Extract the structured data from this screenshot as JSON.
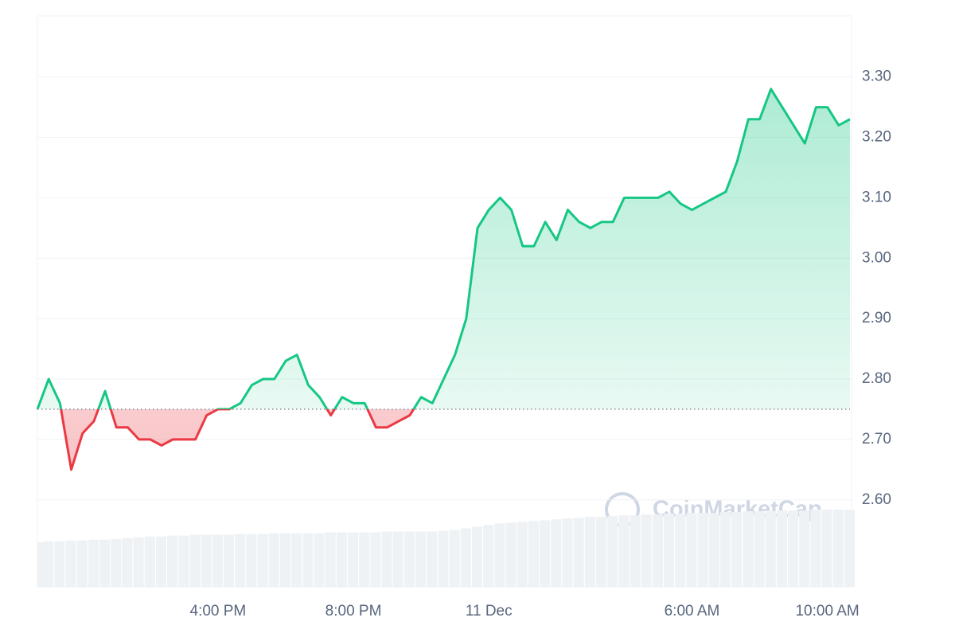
{
  "chart_data": {
    "type": "line",
    "categories": [
      null,
      null,
      null,
      null,
      null,
      null,
      null,
      null,
      null,
      null,
      null,
      null,
      null,
      null,
      null,
      null,
      "4:00 PM",
      null,
      null,
      null,
      null,
      null,
      null,
      null,
      null,
      null,
      null,
      null,
      "8:00 PM",
      null,
      null,
      null,
      null,
      null,
      null,
      null,
      null,
      null,
      null,
      null,
      "11 Dec",
      null,
      null,
      null,
      null,
      null,
      null,
      null,
      null,
      null,
      null,
      null,
      null,
      null,
      null,
      null,
      null,
      null,
      "6:00 AM",
      null,
      null,
      null,
      null,
      null,
      null,
      null,
      null,
      null,
      null,
      null,
      "10:00 AM",
      null,
      null
    ],
    "values": [
      2.75,
      2.8,
      2.76,
      2.65,
      2.71,
      2.73,
      2.78,
      2.72,
      2.72,
      2.7,
      2.7,
      2.69,
      2.7,
      2.7,
      2.7,
      2.74,
      2.75,
      2.75,
      2.76,
      2.79,
      2.8,
      2.8,
      2.83,
      2.84,
      2.79,
      2.77,
      2.74,
      2.77,
      2.76,
      2.76,
      2.72,
      2.72,
      2.73,
      2.74,
      2.77,
      2.76,
      2.8,
      2.84,
      2.9,
      3.05,
      3.08,
      3.1,
      3.08,
      3.02,
      3.02,
      3.06,
      3.03,
      3.08,
      3.06,
      3.05,
      3.06,
      3.06,
      3.1,
      3.1,
      3.1,
      3.1,
      3.11,
      3.09,
      3.08,
      3.09,
      3.1,
      3.11,
      3.16,
      3.23,
      3.23,
      3.28,
      3.25,
      3.22,
      3.19,
      3.25,
      3.25,
      3.22,
      3.23
    ],
    "volume": [
      55,
      56,
      56,
      57,
      57,
      58,
      58,
      59,
      60,
      61,
      62,
      62,
      63,
      63,
      64,
      64,
      64,
      64,
      65,
      65,
      65,
      66,
      66,
      66,
      66,
      66,
      67,
      67,
      67,
      67,
      67,
      68,
      68,
      68,
      68,
      68,
      69,
      70,
      72,
      74,
      76,
      78,
      79,
      80,
      81,
      82,
      83,
      84,
      85,
      86,
      86,
      87,
      88,
      88,
      89,
      89,
      90,
      90,
      91,
      91,
      91,
      92,
      92,
      93,
      93,
      93,
      94,
      94,
      94,
      95,
      95,
      95,
      95
    ],
    "baseline": 2.75,
    "up_color": "#16c784",
    "down_color": "#ea3943",
    "ylim": [
      2.456,
      3.401
    ],
    "yticks": [
      {
        "value": 2.6,
        "label": "2.60"
      },
      {
        "value": 2.7,
        "label": "2.70"
      },
      {
        "value": 2.8,
        "label": "2.80"
      },
      {
        "value": 2.9,
        "label": "2.90"
      },
      {
        "value": 3.0,
        "label": "3.00"
      },
      {
        "value": 3.1,
        "label": "3.10"
      },
      {
        "value": 3.2,
        "label": "3.20"
      },
      {
        "value": 3.3,
        "label": "3.30"
      }
    ],
    "grid": true,
    "watermark": "CoinMarketCap"
  }
}
